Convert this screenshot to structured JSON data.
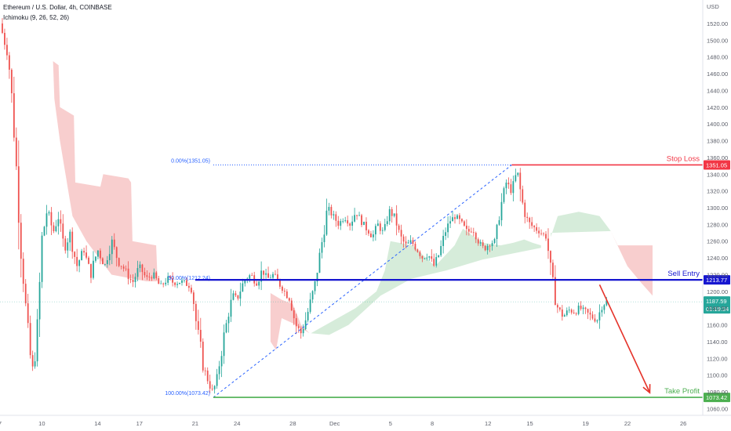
{
  "header": {
    "symbol_title": "Ethereum / U.S. Dollar, 4h, COINBASE",
    "indicator": "Ichimoku (9, 26, 52, 26)"
  },
  "currency_label": "USD",
  "colors": {
    "up": "#26a69a",
    "down": "#ef5350",
    "stop_loss": "#f23645",
    "sell_entry": "#1616d0",
    "take_profit": "#4caf50",
    "fib": "#2962ff",
    "cloud_bear": "#f7c6c6",
    "cloud_bull": "#cfe9d4",
    "arrow": "#e5332a",
    "price_tag": "#26a69a"
  },
  "chart_data": {
    "type": "candlestick",
    "ylim": [
      1052,
      1548
    ],
    "y_ticks": [
      1060,
      1080,
      1100,
      1120,
      1140,
      1160,
      1180,
      1200,
      1220,
      1240,
      1260,
      1280,
      1300,
      1320,
      1340,
      1360,
      1380,
      1400,
      1420,
      1440,
      1460,
      1480,
      1500,
      1520
    ],
    "x_ticks": [
      {
        "label": "7",
        "day": 7
      },
      {
        "label": "10",
        "day": 10
      },
      {
        "label": "14",
        "day": 14
      },
      {
        "label": "17",
        "day": 17
      },
      {
        "label": "21",
        "day": 21
      },
      {
        "label": "24",
        "day": 24
      },
      {
        "label": "28",
        "day": 28
      },
      {
        "label": "Dec",
        "day": 31
      },
      {
        "label": "5",
        "day": 35
      },
      {
        "label": "8",
        "day": 38
      },
      {
        "label": "12",
        "day": 42
      },
      {
        "label": "15",
        "day": 45
      },
      {
        "label": "19",
        "day": 49
      },
      {
        "label": "22",
        "day": 52
      },
      {
        "label": "26",
        "day": 56
      }
    ],
    "x_range_days": [
      7,
      57.4
    ],
    "price_path": [
      [
        7.0,
        1520
      ],
      [
        7.3,
        1500
      ],
      [
        7.6,
        1480
      ],
      [
        7.9,
        1420
      ],
      [
        8.2,
        1340
      ],
      [
        8.5,
        1250
      ],
      [
        8.8,
        1190
      ],
      [
        9.1,
        1130
      ],
      [
        9.4,
        1100
      ],
      [
        9.7,
        1160
      ],
      [
        10.0,
        1260
      ],
      [
        10.4,
        1300
      ],
      [
        10.8,
        1270
      ],
      [
        11.2,
        1290
      ],
      [
        11.6,
        1250
      ],
      [
        12.0,
        1270
      ],
      [
        12.5,
        1230
      ],
      [
        13.0,
        1250
      ],
      [
        13.5,
        1220
      ],
      [
        14.0,
        1250
      ],
      [
        14.5,
        1230
      ],
      [
        15.0,
        1260
      ],
      [
        15.5,
        1235
      ],
      [
        16.0,
        1225
      ],
      [
        16.5,
        1210
      ],
      [
        17.0,
        1230
      ],
      [
        17.5,
        1215
      ],
      [
        18.0,
        1220
      ],
      [
        18.5,
        1205
      ],
      [
        19.0,
        1215
      ],
      [
        19.5,
        1210
      ],
      [
        20.0,
        1212
      ],
      [
        20.5,
        1208
      ],
      [
        20.8,
        1200
      ],
      [
        21.0,
        1170
      ],
      [
        21.3,
        1140
      ],
      [
        21.6,
        1110
      ],
      [
        21.9,
        1095
      ],
      [
        22.2,
        1080
      ],
      [
        22.5,
        1090
      ],
      [
        22.8,
        1120
      ],
      [
        23.1,
        1150
      ],
      [
        23.4,
        1175
      ],
      [
        23.7,
        1195
      ],
      [
        24.0,
        1190
      ],
      [
        24.3,
        1205
      ],
      [
        24.6,
        1215
      ],
      [
        25.0,
        1220
      ],
      [
        25.4,
        1210
      ],
      [
        25.8,
        1225
      ],
      [
        26.2,
        1215
      ],
      [
        26.6,
        1220
      ],
      [
        27.0,
        1210
      ],
      [
        27.4,
        1200
      ],
      [
        27.8,
        1190
      ],
      [
        28.2,
        1160
      ],
      [
        28.6,
        1150
      ],
      [
        29.0,
        1170
      ],
      [
        29.3,
        1190
      ],
      [
        29.6,
        1210
      ],
      [
        29.9,
        1240
      ],
      [
        30.2,
        1270
      ],
      [
        30.5,
        1300
      ],
      [
        30.9,
        1290
      ],
      [
        31.3,
        1280
      ],
      [
        31.7,
        1290
      ],
      [
        32.1,
        1280
      ],
      [
        32.5,
        1295
      ],
      [
        32.9,
        1285
      ],
      [
        33.3,
        1275
      ],
      [
        33.7,
        1265
      ],
      [
        34.1,
        1280
      ],
      [
        34.5,
        1270
      ],
      [
        34.9,
        1295
      ],
      [
        35.3,
        1290
      ],
      [
        35.7,
        1265
      ],
      [
        36.1,
        1255
      ],
      [
        36.5,
        1260
      ],
      [
        36.9,
        1250
      ],
      [
        37.3,
        1240
      ],
      [
        37.7,
        1245
      ],
      [
        38.1,
        1230
      ],
      [
        38.5,
        1245
      ],
      [
        38.9,
        1270
      ],
      [
        39.3,
        1285
      ],
      [
        39.7,
        1290
      ],
      [
        40.1,
        1280
      ],
      [
        40.5,
        1270
      ],
      [
        40.9,
        1275
      ],
      [
        41.3,
        1260
      ],
      [
        41.7,
        1250
      ],
      [
        42.1,
        1258
      ],
      [
        42.5,
        1260
      ],
      [
        42.9,
        1300
      ],
      [
        43.3,
        1330
      ],
      [
        43.7,
        1320
      ],
      [
        44.1,
        1345
      ],
      [
        44.4,
        1310
      ],
      [
        44.7,
        1290
      ],
      [
        45.0,
        1280
      ],
      [
        45.4,
        1275
      ],
      [
        45.8,
        1270
      ],
      [
        46.2,
        1265
      ],
      [
        46.6,
        1210
      ],
      [
        47.0,
        1180
      ],
      [
        47.4,
        1170
      ],
      [
        47.8,
        1178
      ],
      [
        48.2,
        1175
      ],
      [
        48.6,
        1180
      ],
      [
        49.0,
        1175
      ],
      [
        49.4,
        1170
      ],
      [
        49.8,
        1165
      ],
      [
        50.2,
        1185
      ],
      [
        50.5,
        1188
      ]
    ],
    "ichimoku_cloud": [
      {
        "trend": "bear",
        "points": [
          [
            10.8,
            1475
          ],
          [
            11.2,
            1470
          ],
          [
            11.3,
            1420
          ],
          [
            12.3,
            1410
          ],
          [
            12.4,
            1330
          ],
          [
            14.2,
            1325
          ],
          [
            14.4,
            1340
          ],
          [
            16.2,
            1335
          ],
          [
            16.4,
            1330
          ],
          [
            16.5,
            1260
          ],
          [
            18.2,
            1255
          ],
          [
            18.3,
            1212
          ],
          [
            17.5,
            1212
          ],
          [
            15.0,
            1220
          ],
          [
            13.2,
            1260
          ],
          [
            12.2,
            1290
          ],
          [
            11.3,
            1380
          ],
          [
            10.9,
            1430
          ]
        ]
      },
      {
        "trend": "bear",
        "points": [
          [
            26.4,
            1198
          ],
          [
            27.2,
            1190
          ],
          [
            28.0,
            1185
          ],
          [
            28.6,
            1160
          ],
          [
            29.2,
            1150
          ],
          [
            28.0,
            1162
          ],
          [
            27.2,
            1168
          ],
          [
            26.8,
            1130
          ],
          [
            26.4,
            1140
          ]
        ]
      },
      {
        "trend": "bull",
        "points": [
          [
            29.3,
            1150
          ],
          [
            32.5,
            1180
          ],
          [
            34.0,
            1200
          ],
          [
            34.6,
            1225
          ],
          [
            35.0,
            1260
          ],
          [
            36.6,
            1255
          ],
          [
            38.2,
            1230
          ],
          [
            39.6,
            1255
          ],
          [
            40.2,
            1275
          ],
          [
            41.6,
            1258
          ],
          [
            42.9,
            1255
          ],
          [
            43.8,
            1258
          ],
          [
            44.6,
            1262
          ],
          [
            45.2,
            1258
          ],
          [
            45.8,
            1255
          ],
          [
            45.8,
            1252
          ],
          [
            41.6,
            1238
          ],
          [
            39.0,
            1225
          ],
          [
            36.5,
            1215
          ],
          [
            34.3,
            1195
          ],
          [
            32.0,
            1160
          ],
          [
            30.6,
            1148
          ]
        ]
      },
      {
        "trend": "bull",
        "points": [
          [
            46.5,
            1265
          ],
          [
            47.0,
            1290
          ],
          [
            48.5,
            1295
          ],
          [
            50.0,
            1290
          ],
          [
            50.8,
            1272
          ],
          [
            46.5,
            1270
          ]
        ]
      },
      {
        "trend": "bear",
        "points": [
          [
            50.8,
            1272
          ],
          [
            51.3,
            1255
          ],
          [
            53.8,
            1255
          ],
          [
            53.8,
            1195
          ],
          [
            53.0,
            1210
          ],
          [
            52.0,
            1230
          ],
          [
            51.0,
            1265
          ]
        ]
      }
    ],
    "fib_retracement": {
      "top_label": "0.00%(1351.05)",
      "mid_label": "50.00%(1212.24)",
      "bottom_label": "100.00%(1073.42)",
      "top_price": 1351.05,
      "mid_price": 1212.24,
      "bottom_price": 1073.42,
      "start_day": 22.3,
      "end_day": 43.7
    },
    "levels": [
      {
        "name": "Stop Loss",
        "price": 1351.05,
        "price_label": "1351.05",
        "start_day": 43.7,
        "color_key": "stop_loss"
      },
      {
        "name": "Sell Entry",
        "price": 1213.77,
        "price_label": "1213.77",
        "start_day": 21.0,
        "color_key": "sell_entry"
      },
      {
        "name": "Take Profit",
        "price": 1073.42,
        "price_label": "1073.42",
        "start_day": 22.3,
        "color_key": "take_profit"
      }
    ],
    "current_price": {
      "price": 1187.59,
      "price_label": "1187.59",
      "countdown": "01:19:34"
    },
    "projection_arrow": {
      "from": [
        50.0,
        1208
      ],
      "to": [
        53.6,
        1079
      ]
    }
  }
}
